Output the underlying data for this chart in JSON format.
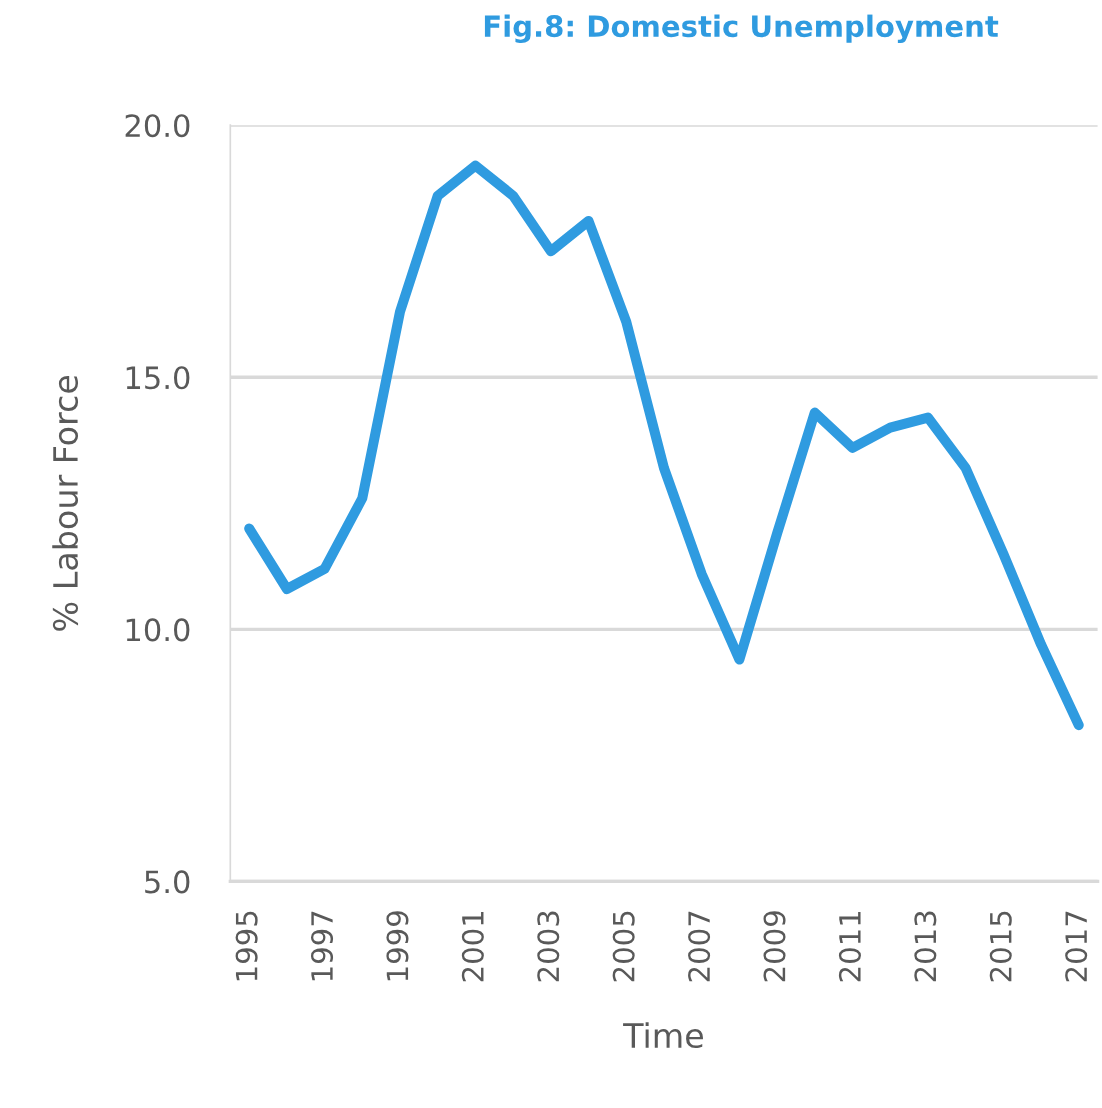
{
  "chart_data": {
    "type": "line",
    "title": "Fig.8: Domestic Unemployment",
    "xlabel": "Time",
    "ylabel": "% Labour Force",
    "x": [
      1995,
      1996,
      1997,
      1998,
      1999,
      2000,
      2001,
      2002,
      2003,
      2004,
      2005,
      2006,
      2007,
      2008,
      2009,
      2010,
      2011,
      2012,
      2013,
      2014,
      2015,
      2016,
      2017
    ],
    "series": [
      {
        "color": "#2f9be0",
        "values": [
          12.0,
          10.8,
          11.2,
          12.6,
          16.3,
          18.6,
          19.2,
          18.6,
          17.5,
          18.1,
          16.1,
          13.2,
          11.1,
          9.4,
          11.9,
          14.3,
          13.6,
          14.0,
          14.2,
          13.2,
          11.5,
          9.7,
          8.1
        ]
      }
    ],
    "xlim": [
      1994.5,
      2017.5
    ],
    "xticks": [
      1995,
      1997,
      1999,
      2001,
      2003,
      2005,
      2007,
      2009,
      2011,
      2013,
      2015,
      2017
    ],
    "ylim": [
      5,
      20
    ],
    "yticks": [
      {
        "value": 5,
        "label": "5.0"
      },
      {
        "value": 10,
        "label": "10.0"
      },
      {
        "value": 15,
        "label": "15.0"
      },
      {
        "value": 20,
        "label": "20.0"
      }
    ],
    "grid": "y",
    "line_style": "solid"
  }
}
